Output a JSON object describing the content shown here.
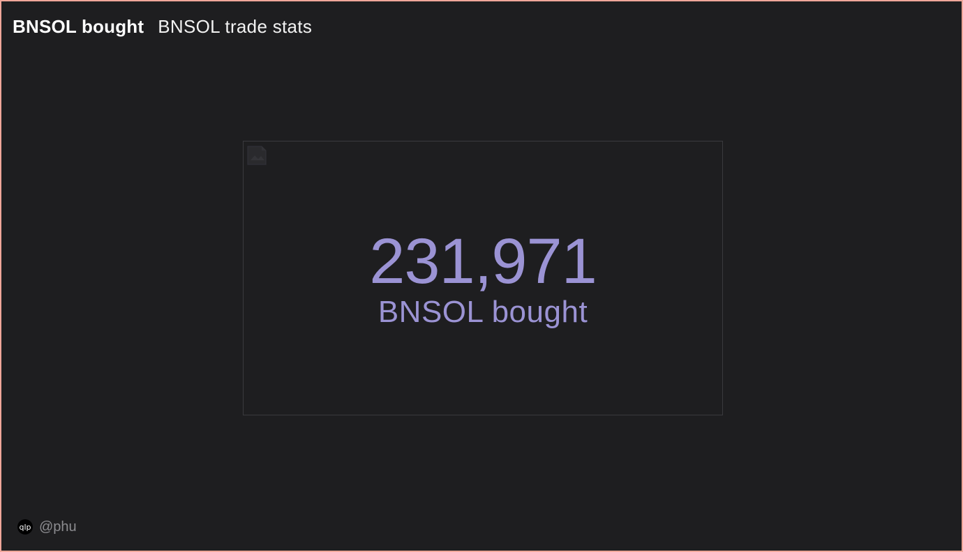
{
  "header": {
    "title": "BNSOL bought",
    "subtitle": "BNSOL trade stats"
  },
  "counter": {
    "value": "231,971",
    "label": "BNSOL bought",
    "color": "#9b93d4"
  },
  "footer": {
    "logo_icon": "dune-logo-icon",
    "handle": "@phu"
  },
  "colors": {
    "background": "#1e1e20",
    "frame_border": "#f0a79a",
    "card_border": "#3a3a3e",
    "header_text": "#ffffff",
    "footer_text": "#8c8c90"
  }
}
